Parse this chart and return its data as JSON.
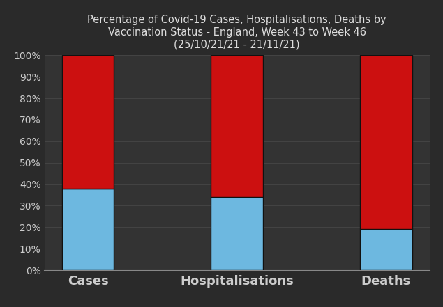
{
  "categories": [
    "Cases",
    "Hospitalisations",
    "Deaths"
  ],
  "unvaccinated": [
    38,
    34,
    19
  ],
  "vaccinated": [
    62,
    66,
    81
  ],
  "color_unvaccinated": "#6db8e0",
  "color_vaccinated": "#cc1010",
  "background_color": "#2a2a2a",
  "plot_bg_color": "#333333",
  "title_line1": "Percentage of Covid-19 Cases, Hospitalisations, Deaths by",
  "title_line2": "Vaccination Status - England, Week 43 to Week 46",
  "title_line3": "(25/10/21/21 - 21/11/21)",
  "title_color": "#dddddd",
  "title_fontsize": 10.5,
  "tick_color": "#cccccc",
  "ytick_fontsize": 10,
  "xlabel_fontsize": 13,
  "ylim": [
    0,
    100
  ],
  "yticks": [
    0,
    10,
    20,
    30,
    40,
    50,
    60,
    70,
    80,
    90,
    100
  ],
  "ytick_labels": [
    "0%",
    "10%",
    "20%",
    "30%",
    "40%",
    "50%",
    "60%",
    "70%",
    "80%",
    "90%",
    "100%"
  ],
  "bar_width": 0.35,
  "edge_color": "#111111",
  "spine_color": "#888888",
  "hline_color": "#555555",
  "bottom_spine_color": "#888888"
}
